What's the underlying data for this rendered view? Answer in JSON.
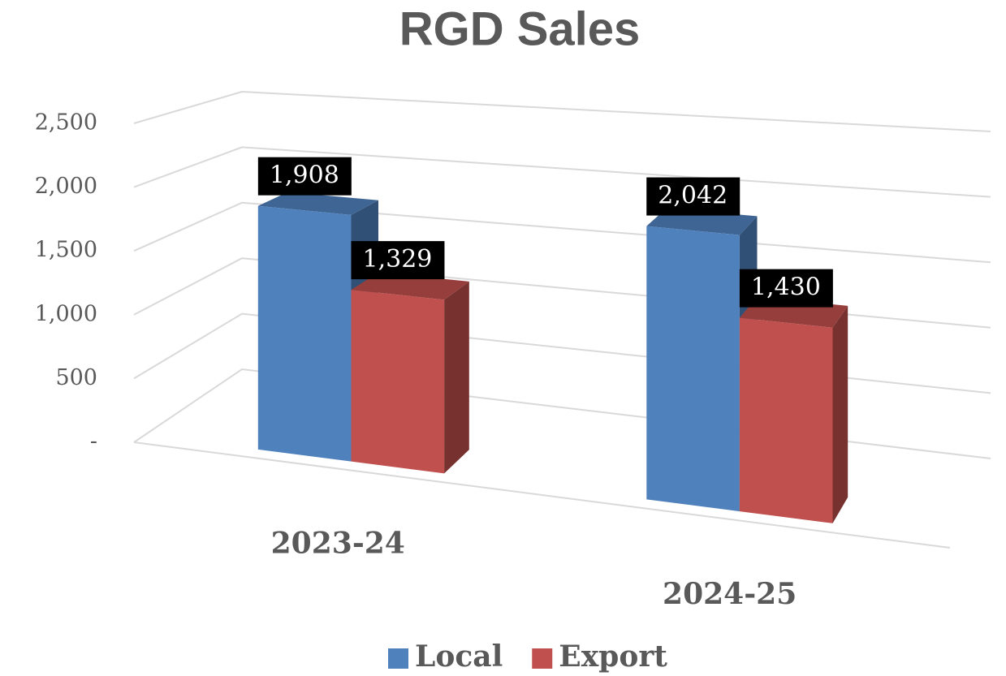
{
  "chart_data": {
    "type": "bar3d",
    "title": "RGD Sales",
    "categories": [
      "2023-24",
      "2024-25"
    ],
    "series": [
      {
        "name": "Local",
        "color": "#4f81bd",
        "values": [
          1908,
          2042
        ],
        "value_labels": [
          "1,908",
          "2,042"
        ]
      },
      {
        "name": "Export",
        "color": "#c0504d",
        "values": [
          1329,
          1430
        ],
        "value_labels": [
          "1,329",
          "1,430"
        ]
      }
    ],
    "ylim": [
      0,
      2500
    ],
    "yticks": [
      {
        "value": 0,
        "label": "-"
      },
      500,
      {
        "value": 1000,
        "label": "1,000"
      },
      {
        "value": 1500,
        "label": "1,500"
      },
      {
        "value": 2000,
        "label": "2,000"
      },
      {
        "value": 2500,
        "label": "2,500"
      }
    ],
    "grid": true,
    "legend": "bottom"
  }
}
